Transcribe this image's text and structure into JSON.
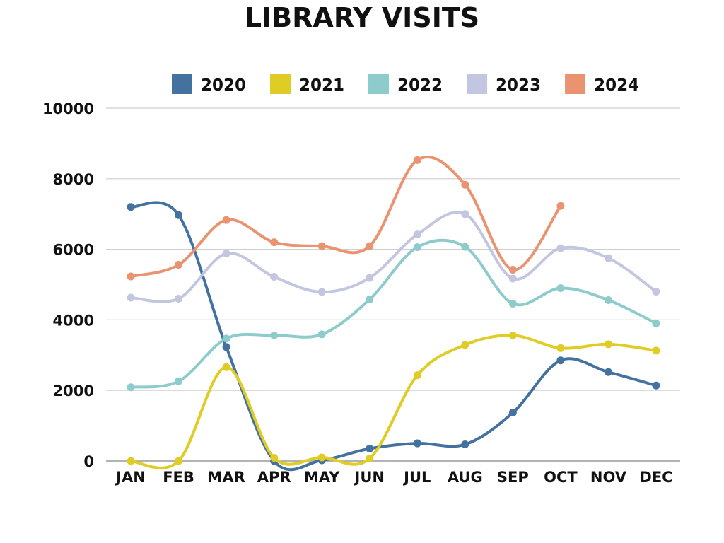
{
  "chart_data": {
    "type": "line",
    "title": "LIBRARY VISITS",
    "xlabel": "",
    "ylabel": "",
    "categories": [
      "JAN",
      "FEB",
      "MAR",
      "APR",
      "MAY",
      "JUN",
      "JUL",
      "AUG",
      "SEP",
      "OCT",
      "NOV",
      "DEC"
    ],
    "ylim": [
      0,
      10000
    ],
    "yticks": [
      0,
      2000,
      4000,
      6000,
      8000,
      10000
    ],
    "grid": true,
    "smooth": true,
    "legend_position": "top-center",
    "series": [
      {
        "name": "2020",
        "color": "#4472a0",
        "values": [
          7200,
          6970,
          3230,
          0,
          20,
          350,
          500,
          470,
          1370,
          2850,
          2520,
          2140
        ]
      },
      {
        "name": "2021",
        "color": "#dfcc25",
        "values": [
          0,
          0,
          2660,
          90,
          100,
          70,
          2430,
          3290,
          3560,
          3200,
          3310,
          3130
        ]
      },
      {
        "name": "2022",
        "color": "#8ecbcb",
        "values": [
          2090,
          2260,
          3470,
          3560,
          3590,
          4580,
          6060,
          6070,
          4460,
          4900,
          4560,
          3900
        ]
      },
      {
        "name": "2023",
        "color": "#c3c6e1",
        "values": [
          4630,
          4600,
          5880,
          5220,
          4790,
          5190,
          6420,
          7000,
          5170,
          6030,
          5750,
          4800
        ]
      },
      {
        "name": "2024",
        "color": "#ea9370",
        "values": [
          5230,
          5560,
          6830,
          6200,
          6090,
          6090,
          8530,
          7830,
          5420,
          7230,
          null,
          null
        ]
      }
    ]
  }
}
